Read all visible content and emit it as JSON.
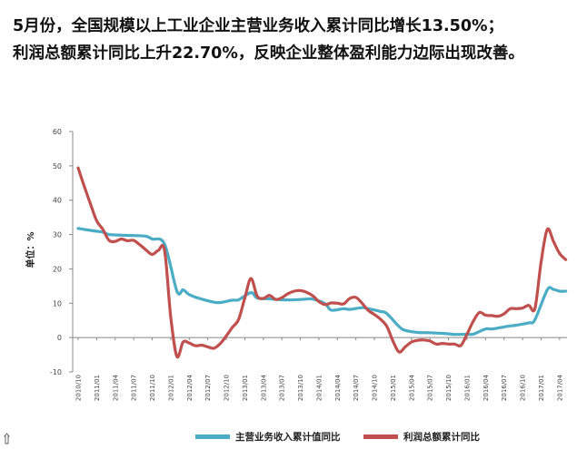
{
  "headline": {
    "line1": "5月份，全国规模以上工业企业主营业务收入累计同比增长13.50%；",
    "line2": "利润总额累计同比上升22.70%，反映企业整体盈利能力边际出现改善。"
  },
  "chart_data": {
    "type": "line",
    "ylabel": "单位：%",
    "ylim": [
      -10,
      60
    ],
    "yticks": [
      -10,
      0,
      10,
      20,
      30,
      40,
      50,
      60
    ],
    "grid": false,
    "legend": "bottom",
    "xticks": [
      "2010/10",
      "2011/01",
      "2011/04",
      "2011/07",
      "2011/10",
      "2012/01",
      "2012/04",
      "2012/07",
      "2012/10",
      "2013/01",
      "2013/04",
      "2013/07",
      "2013/10",
      "2014/01",
      "2014/04",
      "2014/07",
      "2014/10",
      "2015/01",
      "2015/04",
      "2015/07",
      "2015/10",
      "2016/01",
      "2016/04",
      "2016/07",
      "2016/10",
      "2017/01",
      "2017/04"
    ],
    "series": [
      {
        "name": "主营业务收入累计值同比",
        "color": "#4bacc6",
        "points": [
          [
            "2010/10",
            31.8
          ],
          [
            "2010/12",
            31.2
          ],
          [
            "2011/02",
            30.7
          ],
          [
            "2011/03",
            30.0
          ],
          [
            "2011/05",
            29.8
          ],
          [
            "2011/07",
            29.7
          ],
          [
            "2011/09",
            29.5
          ],
          [
            "2011/10",
            28.7
          ],
          [
            "2011/12",
            27.2
          ],
          [
            "2012/02",
            13.5
          ],
          [
            "2012/03",
            13.9
          ],
          [
            "2012/04",
            12.5
          ],
          [
            "2012/06",
            11.2
          ],
          [
            "2012/08",
            10.3
          ],
          [
            "2012/09",
            10.2
          ],
          [
            "2012/11",
            10.9
          ],
          [
            "2012/12",
            11.0
          ],
          [
            "2013/02",
            13.1
          ],
          [
            "2013/03",
            11.5
          ],
          [
            "2013/05",
            11.3
          ],
          [
            "2013/07",
            11.0
          ],
          [
            "2013/09",
            11.0
          ],
          [
            "2013/11",
            11.2
          ],
          [
            "2013/12",
            11.2
          ],
          [
            "2014/02",
            9.9
          ],
          [
            "2014/03",
            8.0
          ],
          [
            "2014/05",
            8.4
          ],
          [
            "2014/06",
            8.2
          ],
          [
            "2014/08",
            8.7
          ],
          [
            "2014/09",
            8.4
          ],
          [
            "2014/11",
            7.6
          ],
          [
            "2014/12",
            7.0
          ],
          [
            "2015/02",
            3.2
          ],
          [
            "2015/03",
            2.1
          ],
          [
            "2015/05",
            1.5
          ],
          [
            "2015/07",
            1.4
          ],
          [
            "2015/08",
            1.3
          ],
          [
            "2015/10",
            1.1
          ],
          [
            "2015/11",
            0.9
          ],
          [
            "2016/01",
            1.0
          ],
          [
            "2016/02",
            1.0
          ],
          [
            "2016/04",
            2.5
          ],
          [
            "2016/05",
            2.5
          ],
          [
            "2016/07",
            3.1
          ],
          [
            "2016/08",
            3.4
          ],
          [
            "2016/09",
            3.6
          ],
          [
            "2016/11",
            4.3
          ],
          [
            "2016/12",
            5.2
          ],
          [
            "2017/02",
            13.9
          ],
          [
            "2017/03",
            14.0
          ],
          [
            "2017/04",
            13.5
          ],
          [
            "2017/05",
            13.5
          ]
        ]
      },
      {
        "name": "利润总额累计同比",
        "color": "#c0504d",
        "points": [
          [
            "2010/10",
            49.4
          ],
          [
            "2010/11",
            44.0
          ],
          [
            "2010/12",
            38.9
          ],
          [
            "2011/01",
            34.0
          ],
          [
            "2011/02",
            31.5
          ],
          [
            "2011/03",
            28.3
          ],
          [
            "2011/04",
            28.0
          ],
          [
            "2011/05",
            28.7
          ],
          [
            "2011/06",
            28.2
          ],
          [
            "2011/07",
            28.3
          ],
          [
            "2011/08",
            27.0
          ],
          [
            "2011/09",
            25.5
          ],
          [
            "2011/10",
            24.2
          ],
          [
            "2011/11",
            25.4
          ],
          [
            "2011/12",
            25.4
          ],
          [
            "2012/01",
            6.0
          ],
          [
            "2012/02",
            -5.5
          ],
          [
            "2012/03",
            -1.3
          ],
          [
            "2012/04",
            -1.6
          ],
          [
            "2012/05",
            -2.4
          ],
          [
            "2012/06",
            -2.2
          ],
          [
            "2012/07",
            -2.7
          ],
          [
            "2012/08",
            -3.1
          ],
          [
            "2012/09",
            -1.8
          ],
          [
            "2012/10",
            0.5
          ],
          [
            "2012/11",
            3.0
          ],
          [
            "2012/12",
            5.3
          ],
          [
            "2013/01",
            11.5
          ],
          [
            "2013/02",
            17.2
          ],
          [
            "2013/03",
            12.1
          ],
          [
            "2013/04",
            11.4
          ],
          [
            "2013/05",
            12.3
          ],
          [
            "2013/06",
            11.1
          ],
          [
            "2013/07",
            11.6
          ],
          [
            "2013/08",
            12.8
          ],
          [
            "2013/09",
            13.5
          ],
          [
            "2013/10",
            13.7
          ],
          [
            "2013/11",
            13.2
          ],
          [
            "2013/12",
            12.2
          ],
          [
            "2014/01",
            10.5
          ],
          [
            "2014/02",
            9.6
          ],
          [
            "2014/03",
            10.1
          ],
          [
            "2014/04",
            10.0
          ],
          [
            "2014/05",
            9.8
          ],
          [
            "2014/06",
            11.4
          ],
          [
            "2014/07",
            11.7
          ],
          [
            "2014/08",
            10.0
          ],
          [
            "2014/09",
            7.9
          ],
          [
            "2014/10",
            6.7
          ],
          [
            "2014/11",
            5.3
          ],
          [
            "2014/12",
            3.3
          ],
          [
            "2015/01",
            -1.0
          ],
          [
            "2015/02",
            -4.2
          ],
          [
            "2015/03",
            -2.7
          ],
          [
            "2015/04",
            -1.3
          ],
          [
            "2015/05",
            -0.8
          ],
          [
            "2015/06",
            -0.7
          ],
          [
            "2015/07",
            -1.0
          ],
          [
            "2015/08",
            -1.9
          ],
          [
            "2015/09",
            -1.7
          ],
          [
            "2015/10",
            -1.9
          ],
          [
            "2015/11",
            -1.9
          ],
          [
            "2015/12",
            -2.3
          ],
          [
            "2016/01",
            1.0
          ],
          [
            "2016/02",
            4.7
          ],
          [
            "2016/03",
            7.3
          ],
          [
            "2016/04",
            6.5
          ],
          [
            "2016/05",
            6.4
          ],
          [
            "2016/06",
            6.2
          ],
          [
            "2016/07",
            6.9
          ],
          [
            "2016/08",
            8.4
          ],
          [
            "2016/09",
            8.4
          ],
          [
            "2016/10",
            8.6
          ],
          [
            "2016/11",
            9.4
          ],
          [
            "2016/12",
            8.5
          ],
          [
            "2017/01",
            22.0
          ],
          [
            "2017/02",
            31.5
          ],
          [
            "2017/03",
            28.0
          ],
          [
            "2017/04",
            24.5
          ],
          [
            "2017/05",
            22.7
          ]
        ]
      }
    ]
  }
}
